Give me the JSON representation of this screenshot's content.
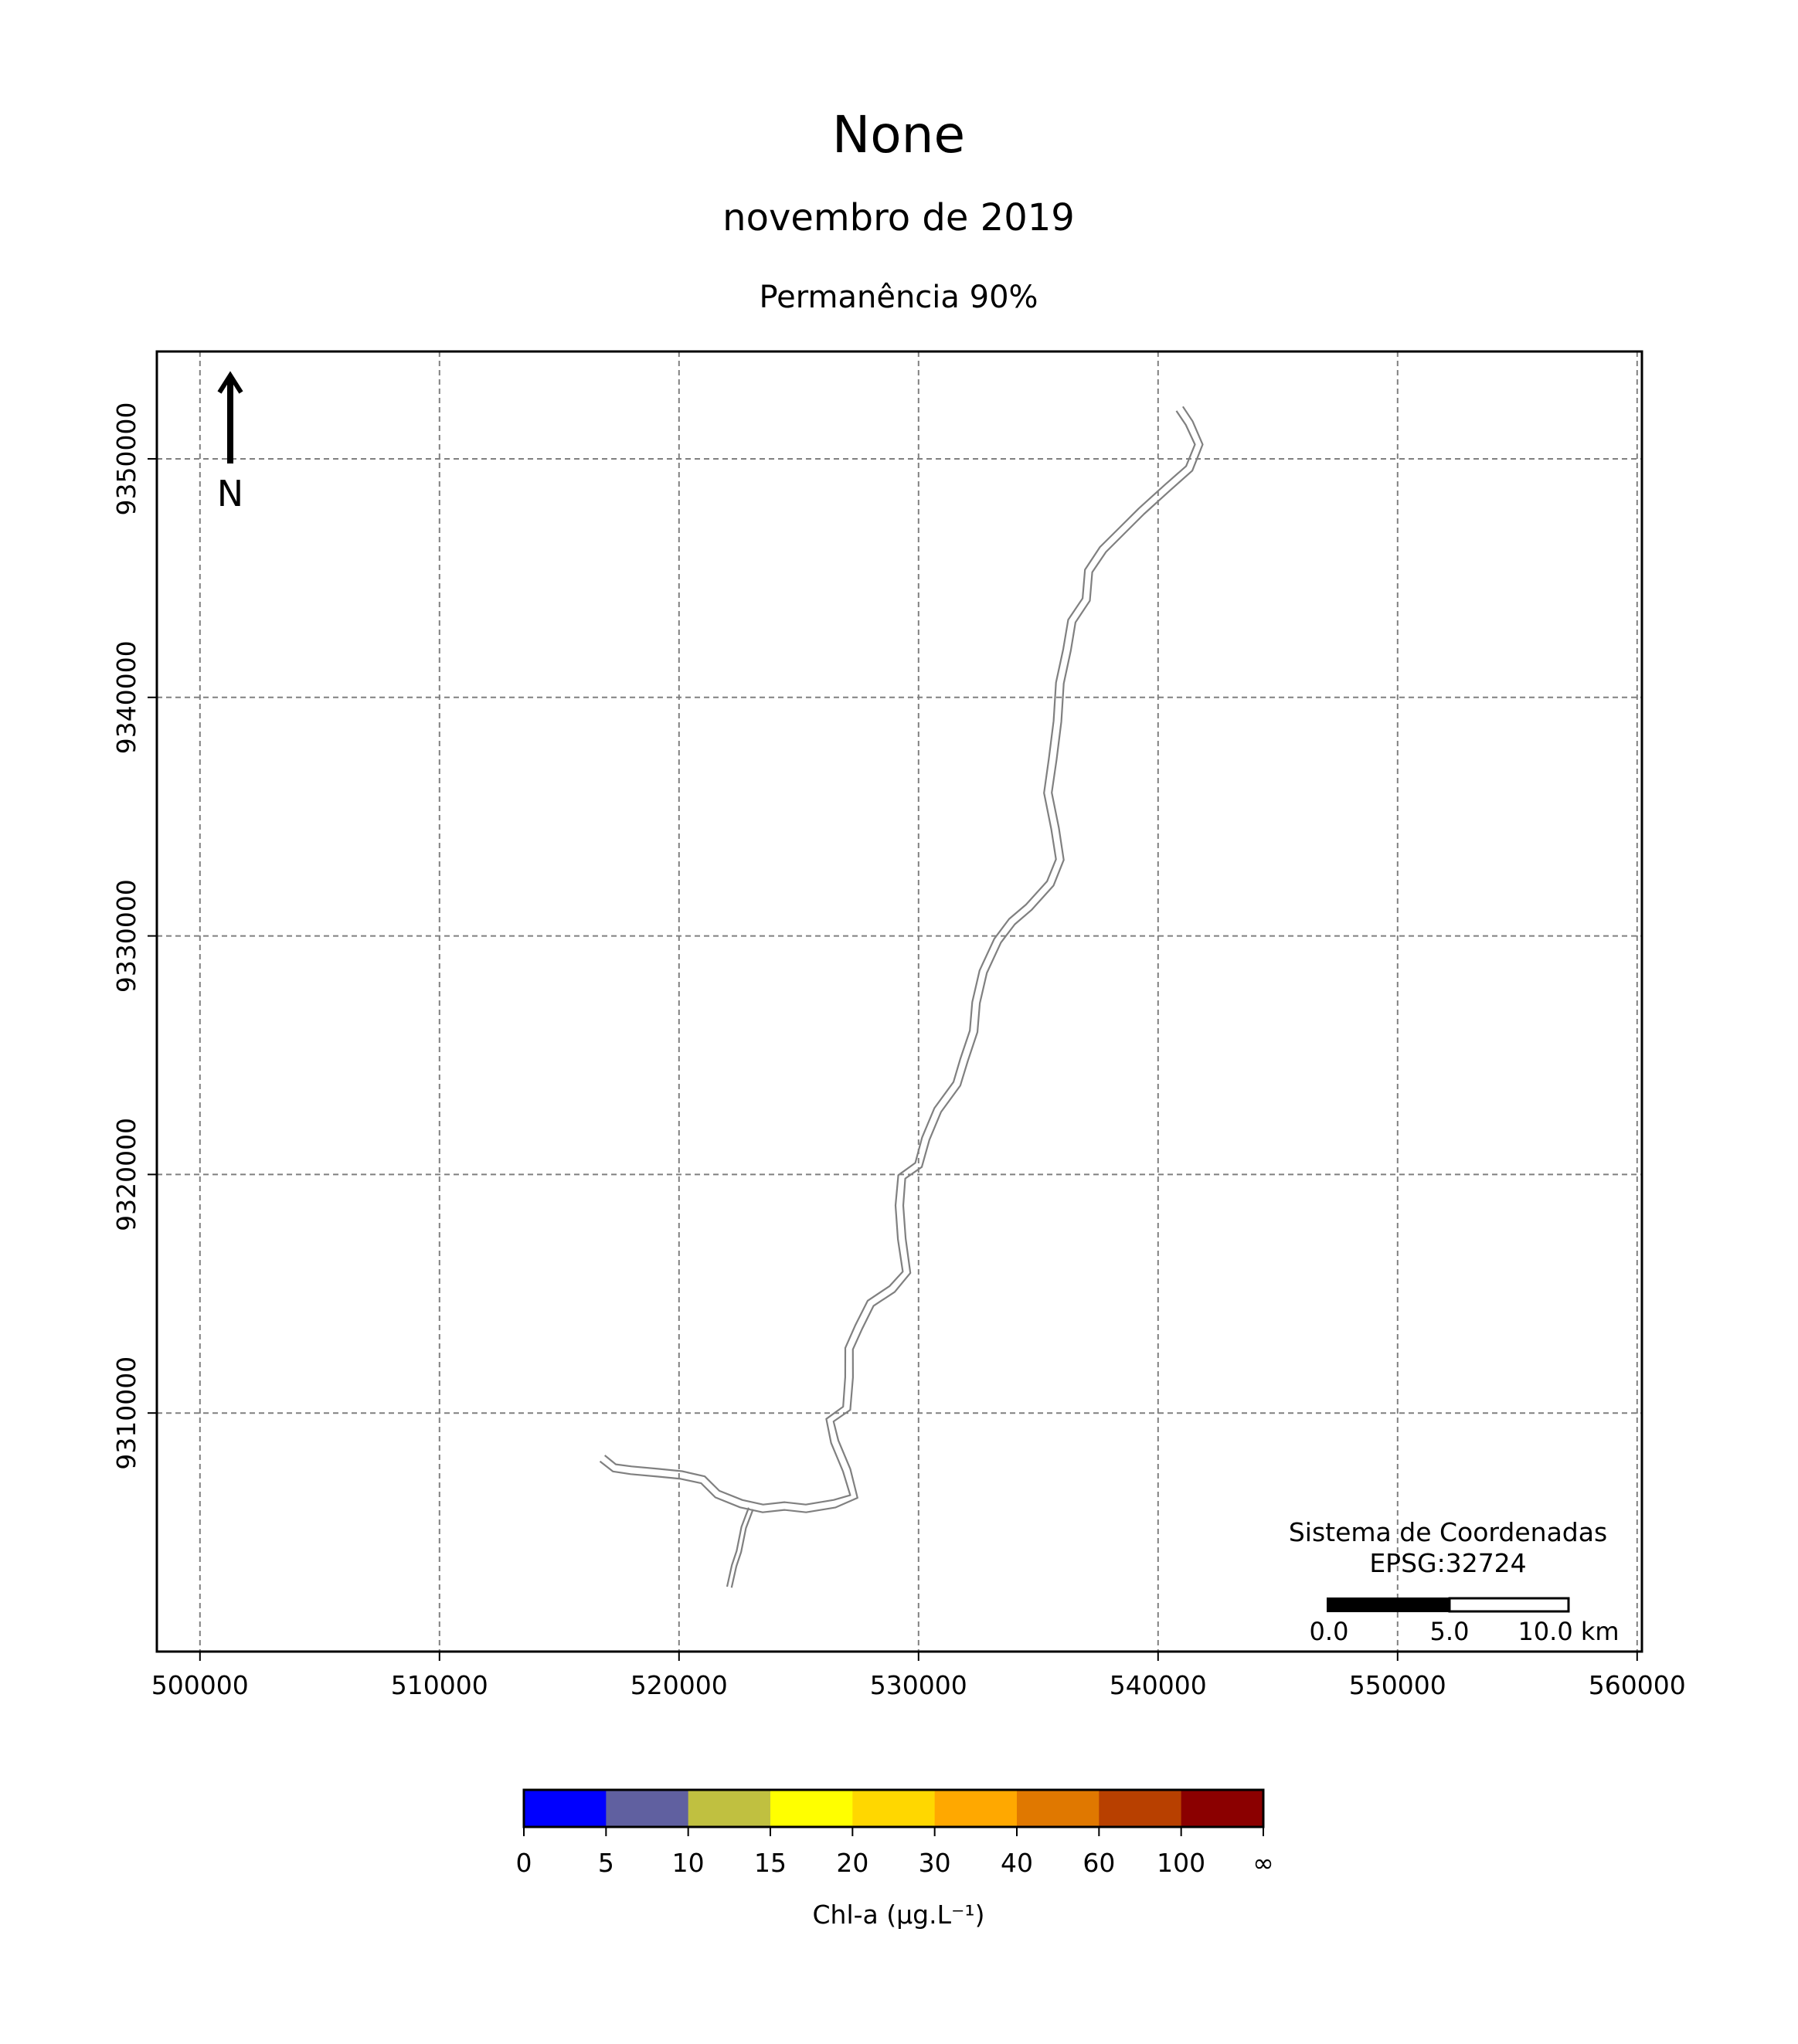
{
  "title": "None",
  "subtitle": "novembro de 2019",
  "subtitle2": "Permanência 90%",
  "north_arrow": {
    "label": "N"
  },
  "crs": {
    "line1": "Sistema de Coordenadas",
    "line2": "EPSG:32724"
  },
  "scalebar": {
    "labels": [
      "0.0",
      "5.0",
      "10.0 km"
    ]
  },
  "chart_data": {
    "type": "map",
    "xlim": [
      498200,
      560200
    ],
    "ylim": [
      9300000,
      9354500
    ],
    "x_ticks": [
      500000,
      510000,
      520000,
      530000,
      540000,
      550000,
      560000
    ],
    "y_ticks": [
      9310000,
      9320000,
      9330000,
      9340000,
      9350000
    ],
    "grid": true,
    "river_centerline": [
      [
        540900,
        9352100
      ],
      [
        541300,
        9351500
      ],
      [
        541700,
        9350600
      ],
      [
        541300,
        9349600
      ],
      [
        540400,
        9348800
      ],
      [
        539300,
        9347800
      ],
      [
        538500,
        9347000
      ],
      [
        537700,
        9346200
      ],
      [
        537100,
        9345300
      ],
      [
        537000,
        9344100
      ],
      [
        536400,
        9343200
      ],
      [
        536200,
        9342000
      ],
      [
        535900,
        9340600
      ],
      [
        535800,
        9339000
      ],
      [
        535600,
        9337400
      ],
      [
        535400,
        9336000
      ],
      [
        535700,
        9334500
      ],
      [
        535900,
        9333200
      ],
      [
        535500,
        9332200
      ],
      [
        534600,
        9331200
      ],
      [
        533900,
        9330600
      ],
      [
        533300,
        9329800
      ],
      [
        532700,
        9328500
      ],
      [
        532400,
        9327200
      ],
      [
        532300,
        9326000
      ],
      [
        531900,
        9324800
      ],
      [
        531600,
        9323800
      ],
      [
        530800,
        9322700
      ],
      [
        530300,
        9321500
      ],
      [
        530000,
        9320400
      ],
      [
        529300,
        9319900
      ],
      [
        529200,
        9318700
      ],
      [
        529300,
        9317300
      ],
      [
        529500,
        9315900
      ],
      [
        528900,
        9315200
      ],
      [
        528000,
        9314600
      ],
      [
        527500,
        9313600
      ],
      [
        527100,
        9312700
      ],
      [
        527100,
        9311500
      ],
      [
        527000,
        9310200
      ],
      [
        526300,
        9309700
      ],
      [
        526500,
        9308800
      ],
      [
        527000,
        9307600
      ],
      [
        527300,
        9306500
      ],
      [
        526500,
        9306200
      ],
      [
        525300,
        9306000
      ],
      [
        524400,
        9306100
      ],
      [
        523500,
        9306000
      ],
      [
        522600,
        9306200
      ],
      [
        521600,
        9306600
      ],
      [
        521000,
        9307200
      ],
      [
        520100,
        9307400
      ],
      [
        519100,
        9307500
      ],
      [
        518000,
        9307600
      ],
      [
        517300,
        9307700
      ],
      [
        516800,
        9308100
      ]
    ],
    "river_tributary": [
      [
        523000,
        9306000
      ],
      [
        522700,
        9305200
      ],
      [
        522500,
        9304200
      ],
      [
        522300,
        9303600
      ],
      [
        522100,
        9302700
      ]
    ],
    "colorbar": {
      "label": "Chl-a (μg.L⁻¹)",
      "bounds": [
        "0",
        "5",
        "10",
        "15",
        "20",
        "30",
        "40",
        "60",
        "100",
        "∞"
      ],
      "colors": [
        "#0000ff",
        "#6060a0",
        "#c0c040",
        "#ffff00",
        "#ffd700",
        "#ffa800",
        "#e07800",
        "#b84000",
        "#8b0000"
      ]
    }
  }
}
